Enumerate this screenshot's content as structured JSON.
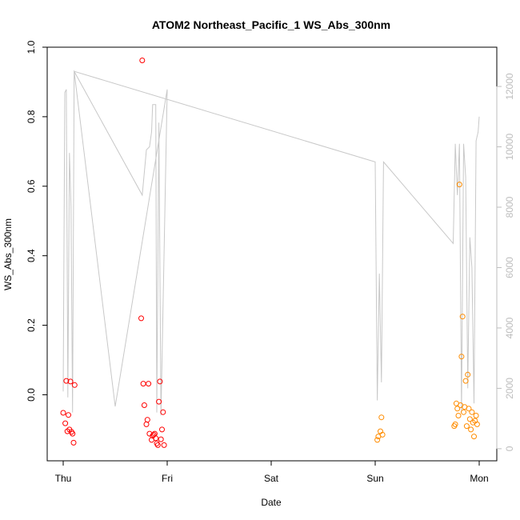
{
  "chart_data": {
    "type": "scatter",
    "title": "ATOM2 Northeast_Pacific_1 WS_Abs_300nm",
    "xlabel": "Date",
    "ylabel": "WS_Abs_300nm",
    "x_tick_labels": [
      "Thu",
      "Fri",
      "Sat",
      "Sun",
      "Mon"
    ],
    "xlim": [
      -0.1,
      4.1
    ],
    "ylim": [
      -0.19,
      1.0
    ],
    "y_ticks": [
      0.0,
      0.2,
      0.4,
      0.6,
      0.8,
      1.0
    ],
    "y_tick_labels": [
      "0.0",
      "0.2",
      "0.4",
      "0.6",
      "0.8",
      "1.0"
    ],
    "y2_ticks": [
      0,
      2000,
      4000,
      6000,
      8000,
      10000,
      12000
    ],
    "y2_tick_labels": [
      "0",
      "2000",
      "4000",
      "6000",
      "8000",
      "10000",
      "12000"
    ],
    "y2lim": [
      -400,
      13300
    ],
    "grid": false,
    "series": [
      {
        "color": "#ff0000",
        "points": [
          [
            0.0,
            -0.052
          ],
          [
            0.02,
            -0.082
          ],
          [
            0.03,
            0.04
          ],
          [
            0.04,
            -0.105
          ],
          [
            0.05,
            -0.058
          ],
          [
            0.06,
            -0.1
          ],
          [
            0.07,
            0.038
          ],
          [
            0.08,
            -0.107
          ],
          [
            0.09,
            -0.112
          ],
          [
            0.1,
            -0.138
          ],
          [
            0.11,
            0.028
          ],
          [
            0.75,
            0.22
          ],
          [
            0.76,
            0.962
          ],
          [
            0.77,
            0.032
          ],
          [
            0.78,
            -0.03
          ],
          [
            0.8,
            -0.085
          ],
          [
            0.81,
            -0.072
          ],
          [
            0.82,
            0.032
          ],
          [
            0.83,
            -0.112
          ],
          [
            0.85,
            -0.13
          ],
          [
            0.86,
            -0.118
          ],
          [
            0.87,
            -0.115
          ],
          [
            0.88,
            -0.112
          ],
          [
            0.89,
            -0.125
          ],
          [
            0.9,
            -0.14
          ],
          [
            0.91,
            -0.145
          ],
          [
            0.92,
            -0.02
          ],
          [
            0.93,
            0.038
          ],
          [
            0.94,
            -0.128
          ],
          [
            0.95,
            -0.1
          ],
          [
            0.96,
            -0.05
          ],
          [
            0.97,
            -0.145
          ]
        ]
      },
      {
        "color": "#ff8c00",
        "points": [
          [
            3.02,
            -0.13
          ],
          [
            3.03,
            -0.12
          ],
          [
            3.05,
            -0.105
          ],
          [
            3.06,
            -0.065
          ],
          [
            3.07,
            -0.115
          ],
          [
            3.76,
            -0.09
          ],
          [
            3.77,
            -0.085
          ],
          [
            3.78,
            -0.025
          ],
          [
            3.79,
            -0.04
          ],
          [
            3.8,
            -0.06
          ],
          [
            3.81,
            0.605
          ],
          [
            3.82,
            -0.03
          ],
          [
            3.83,
            0.11
          ],
          [
            3.84,
            0.225
          ],
          [
            3.85,
            -0.05
          ],
          [
            3.86,
            -0.035
          ],
          [
            3.87,
            0.04
          ],
          [
            3.88,
            -0.09
          ],
          [
            3.89,
            0.058
          ],
          [
            3.9,
            -0.04
          ],
          [
            3.91,
            -0.07
          ],
          [
            3.92,
            -0.1
          ],
          [
            3.93,
            -0.05
          ],
          [
            3.94,
            -0.08
          ],
          [
            3.95,
            -0.12
          ],
          [
            3.96,
            -0.075
          ],
          [
            3.97,
            -0.06
          ],
          [
            3.98,
            -0.085
          ]
        ]
      }
    ],
    "line_series": {
      "color": "#c8c8c8",
      "axis": "right",
      "points": [
        [
          0.0,
          1900
        ],
        [
          0.015,
          11800
        ],
        [
          0.03,
          11900
        ],
        [
          0.045,
          1700
        ],
        [
          0.06,
          9800
        ],
        [
          0.075,
          8000
        ],
        [
          0.09,
          1200
        ],
        [
          0.105,
          12500
        ],
        [
          0.76,
          8400
        ],
        [
          0.8,
          9900
        ],
        [
          0.83,
          10000
        ],
        [
          0.85,
          10500
        ],
        [
          0.86,
          11400
        ],
        [
          0.89,
          11400
        ],
        [
          0.9,
          1200
        ],
        [
          0.92,
          10800
        ],
        [
          0.94,
          1100
        ],
        [
          1.0,
          11900
        ],
        [
          0.5,
          1400
        ],
        [
          0.105,
          12500
        ],
        [
          3.0,
          9500
        ],
        [
          3.02,
          1600
        ],
        [
          3.04,
          5800
        ],
        [
          3.06,
          2200
        ],
        [
          3.08,
          9500
        ],
        [
          3.75,
          6800
        ],
        [
          3.77,
          10100
        ],
        [
          3.79,
          8400
        ],
        [
          3.81,
          10100
        ],
        [
          3.83,
          1200
        ],
        [
          3.85,
          10100
        ],
        [
          3.87,
          9000
        ],
        [
          3.89,
          2000
        ],
        [
          3.91,
          7000
        ],
        [
          3.93,
          6000
        ],
        [
          3.95,
          1500
        ],
        [
          3.97,
          10200
        ],
        [
          3.99,
          10500
        ],
        [
          4.0,
          11000
        ]
      ]
    }
  }
}
